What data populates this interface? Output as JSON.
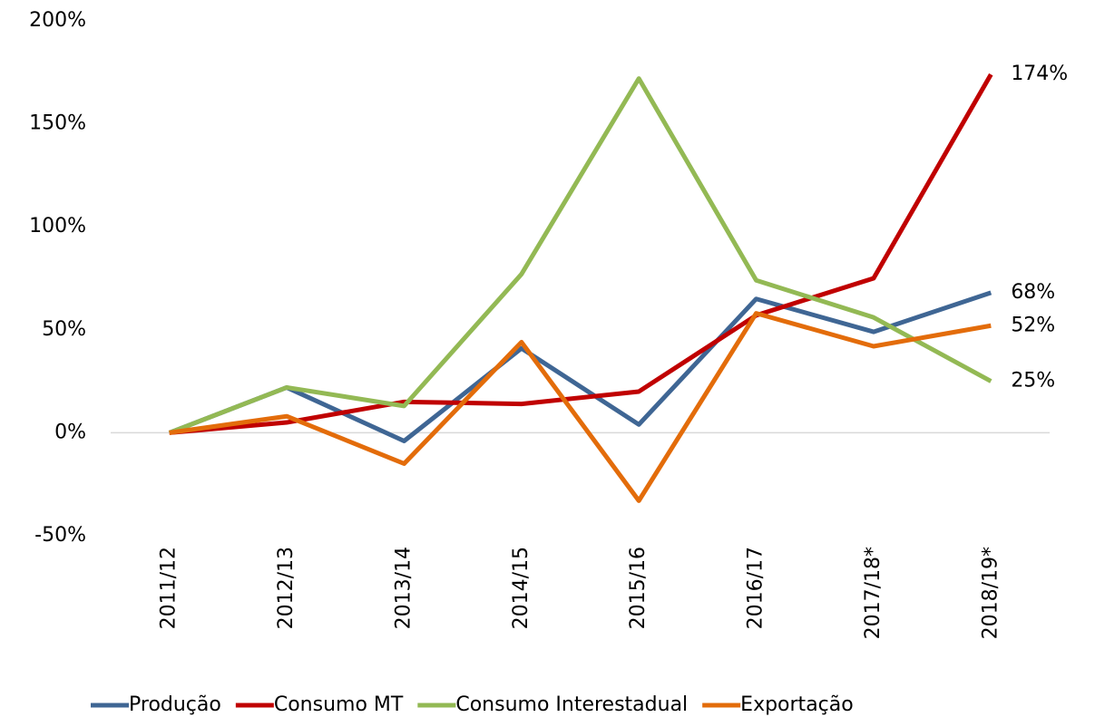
{
  "chart_data": {
    "type": "line",
    "categories": [
      "2011/12",
      "2012/13",
      "2013/14",
      "2014/15",
      "2015/16",
      "2016/17",
      "2017/18*",
      "2018/19*"
    ],
    "series": [
      {
        "name": "Produção",
        "color": "#3f6694",
        "values": [
          0,
          22,
          -4,
          41,
          4,
          65,
          49,
          68
        ],
        "value_labels": [
          null,
          null,
          null,
          null,
          null,
          null,
          null,
          "68%"
        ]
      },
      {
        "name": "Consumo MT",
        "color": "#c00000",
        "values": [
          0,
          5,
          15,
          14,
          20,
          57,
          75,
          174
        ],
        "value_labels": [
          null,
          null,
          null,
          null,
          null,
          null,
          null,
          "174%"
        ]
      },
      {
        "name": "Consumo Interestadual",
        "color": "#93b954",
        "values": [
          0,
          22,
          13,
          77,
          172,
          74,
          56,
          25
        ],
        "value_labels": [
          null,
          null,
          null,
          null,
          null,
          null,
          null,
          "25%"
        ]
      },
      {
        "name": "Exportação",
        "color": "#e36c0a",
        "values": [
          0,
          8,
          -15,
          44,
          -33,
          58,
          42,
          52
        ],
        "value_labels": [
          null,
          null,
          null,
          null,
          null,
          null,
          null,
          "52%"
        ]
      }
    ],
    "ylim": [
      -50,
      200
    ],
    "yticks": [
      {
        "value": -50,
        "label": "-50%"
      },
      {
        "value": 0,
        "label": "0%"
      },
      {
        "value": 50,
        "label": "50%"
      },
      {
        "value": 100,
        "label": "100%"
      },
      {
        "value": 150,
        "label": "150%"
      },
      {
        "value": 200,
        "label": "200%"
      }
    ],
    "grid": false,
    "legend": "bottom"
  }
}
